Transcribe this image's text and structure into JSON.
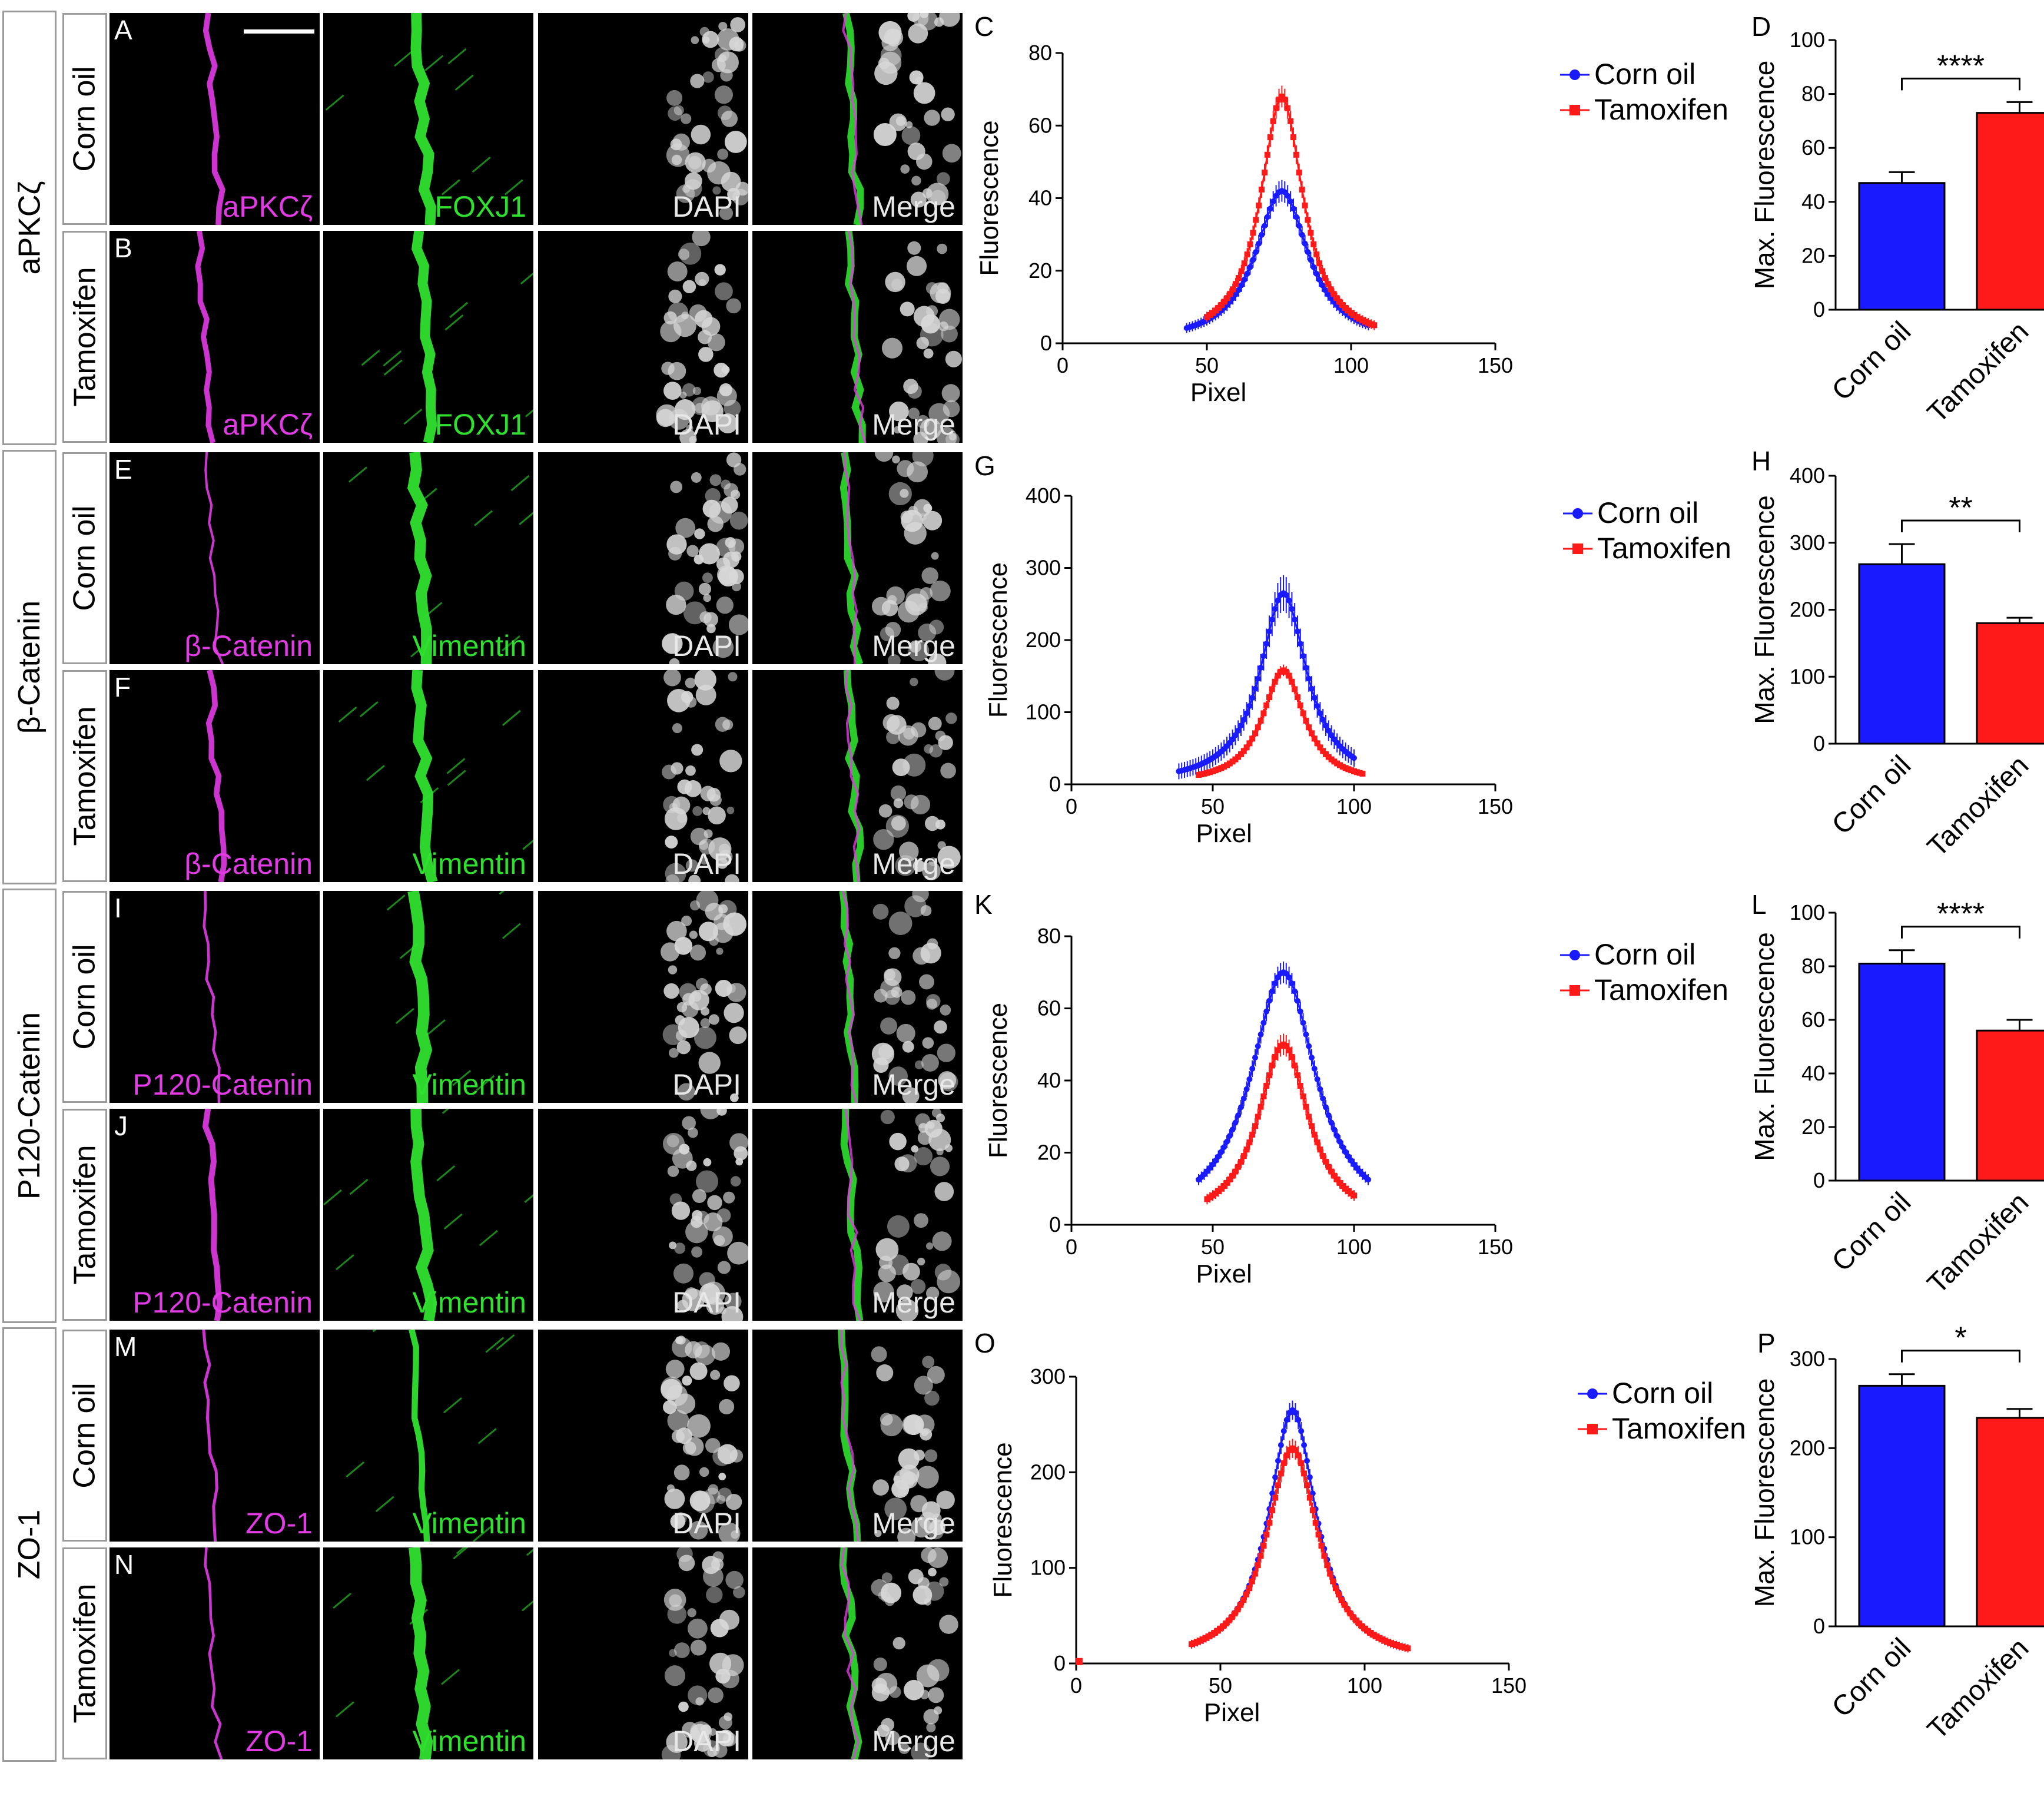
{
  "figure": {
    "groups": [
      {
        "id": "apkc",
        "label": "aPKCζ",
        "channel_labels": [
          "aPKCζ",
          "FOXJ1",
          "DAPI",
          "Merge"
        ],
        "rows": [
          {
            "letter": "A",
            "condition": "Corn oil"
          },
          {
            "letter": "B",
            "condition": "Tamoxifen"
          }
        ]
      },
      {
        "id": "bcat",
        "label": "β-Catenin",
        "channel_labels": [
          "β-Catenin",
          "Vimentin",
          "DAPI",
          "Merge"
        ],
        "rows": [
          {
            "letter": "E",
            "condition": "Corn oil"
          },
          {
            "letter": "F",
            "condition": "Tamoxifen"
          }
        ]
      },
      {
        "id": "p120",
        "label": "P120-Catenin",
        "channel_labels": [
          "P120-Catenin",
          "Vimentin",
          "DAPI",
          "Merge"
        ],
        "rows": [
          {
            "letter": "I",
            "condition": "Corn oil"
          },
          {
            "letter": "J",
            "condition": "Tamoxifen"
          }
        ]
      },
      {
        "id": "zo1",
        "label": "ZO-1",
        "channel_labels": [
          "ZO-1",
          "Vimentin",
          "DAPI",
          "Merge"
        ],
        "rows": [
          {
            "letter": "M",
            "condition": "Corn oil"
          },
          {
            "letter": "N",
            "condition": "Tamoxifen"
          }
        ]
      }
    ],
    "colors": {
      "corn_oil": "#1a1aff",
      "tamoxifen": "#ff1a1a",
      "magenta": "#e23be6",
      "green": "#2fe02f",
      "white": "#e8e8e8"
    }
  },
  "chart_data": [
    {
      "letter": "C",
      "type": "line",
      "xlabel": "Pixel",
      "ylabel": "Fluorescence",
      "xlim": [
        0,
        150
      ],
      "ylim": [
        0,
        80
      ],
      "xticks": [
        0,
        50,
        100,
        150
      ],
      "yticks": [
        0,
        20,
        40,
        60,
        80
      ],
      "series": [
        {
          "name": "Corn oil",
          "color": "#1a1aff",
          "marker": "circle",
          "peak": 42,
          "center": 76,
          "x_range": [
            43,
            106
          ],
          "width": 11,
          "err": 3
        },
        {
          "name": "Tamoxifen",
          "color": "#ff1a1a",
          "marker": "square",
          "peak": 68,
          "center": 76,
          "x_range": [
            50,
            108
          ],
          "width": 9,
          "err": 3
        }
      ]
    },
    {
      "letter": "D",
      "type": "bar",
      "ylabel": "Max. Fluorescence",
      "categories": [
        "Corn oil",
        "Tamoxifen"
      ],
      "values": [
        47,
        73
      ],
      "errors": [
        4,
        4
      ],
      "colors": [
        "#1a1aff",
        "#ff1a1a"
      ],
      "ylim": [
        0,
        100
      ],
      "yticks": [
        0,
        20,
        40,
        60,
        80,
        100
      ],
      "significance": "****"
    },
    {
      "letter": "G",
      "type": "line",
      "xlabel": "Pixel",
      "ylabel": "Fluorescence",
      "xlim": [
        0,
        150
      ],
      "ylim": [
        0,
        400
      ],
      "xticks": [
        0,
        50,
        100,
        150
      ],
      "yticks": [
        0,
        100,
        200,
        300,
        400
      ],
      "series": [
        {
          "name": "Corn oil",
          "color": "#1a1aff",
          "marker": "circle",
          "peak": 265,
          "center": 75,
          "x_range": [
            38,
            100
          ],
          "width": 10,
          "err": 25
        },
        {
          "name": "Tamoxifen",
          "color": "#ff1a1a",
          "marker": "square",
          "peak": 158,
          "center": 75,
          "x_range": [
            45,
            103
          ],
          "width": 9,
          "err": 8
        }
      ]
    },
    {
      "letter": "H",
      "type": "bar",
      "ylabel": "Max. Fluorescence",
      "categories": [
        "Corn oil",
        "Tamoxifen"
      ],
      "values": [
        268,
        180
      ],
      "errors": [
        30,
        8
      ],
      "colors": [
        "#1a1aff",
        "#ff1a1a"
      ],
      "ylim": [
        0,
        400
      ],
      "yticks": [
        0,
        100,
        200,
        300,
        400
      ],
      "significance": "**"
    },
    {
      "letter": "K",
      "type": "line",
      "xlabel": "Pixel",
      "ylabel": "Fluorescence",
      "xlim": [
        0,
        150
      ],
      "ylim": [
        0,
        80
      ],
      "xticks": [
        0,
        50,
        100,
        150
      ],
      "yticks": [
        0,
        20,
        40,
        60,
        80
      ],
      "series": [
        {
          "name": "Corn oil",
          "color": "#1a1aff",
          "marker": "circle",
          "peak": 70,
          "center": 75,
          "x_range": [
            45,
            105
          ],
          "width": 14,
          "err": 3
        },
        {
          "name": "Tamoxifen",
          "color": "#ff1a1a",
          "marker": "square",
          "peak": 50,
          "center": 75,
          "x_range": [
            48,
            100
          ],
          "width": 11,
          "err": 3
        }
      ]
    },
    {
      "letter": "L",
      "type": "bar",
      "ylabel": "Max. Fluorescence",
      "categories": [
        "Corn oil",
        "Tamoxifen"
      ],
      "values": [
        81,
        56
      ],
      "errors": [
        5,
        4
      ],
      "colors": [
        "#1a1aff",
        "#ff1a1a"
      ],
      "ylim": [
        0,
        100
      ],
      "yticks": [
        0,
        20,
        40,
        60,
        80,
        100
      ],
      "significance": "****"
    },
    {
      "letter": "O",
      "type": "line",
      "xlabel": "Pixel",
      "ylabel": "Fluorescence",
      "xlim": [
        0,
        150
      ],
      "ylim": [
        0,
        300
      ],
      "xticks": [
        0,
        50,
        100,
        150
      ],
      "yticks": [
        0,
        100,
        200,
        300
      ],
      "series": [
        {
          "name": "Corn oil",
          "color": "#1a1aff",
          "marker": "circle",
          "peak": 265,
          "center": 75,
          "x_range": [
            40,
            112
          ],
          "width": 10,
          "err": 10
        },
        {
          "name": "Tamoxifen",
          "color": "#ff1a1a",
          "marker": "square",
          "peak": 225,
          "center": 75,
          "x_range": [
            40,
            115
          ],
          "width": 11,
          "err": 10,
          "extra_point": [
            1,
            2
          ]
        }
      ]
    },
    {
      "letter": "P",
      "type": "bar",
      "ylabel": "Max. Fluorescence",
      "categories": [
        "Corn oil",
        "Tamoxifen"
      ],
      "values": [
        270,
        234
      ],
      "errors": [
        13,
        10
      ],
      "colors": [
        "#1a1aff",
        "#ff1a1a"
      ],
      "ylim": [
        0,
        300
      ],
      "yticks": [
        0,
        100,
        200,
        300
      ],
      "significance": "*"
    }
  ]
}
